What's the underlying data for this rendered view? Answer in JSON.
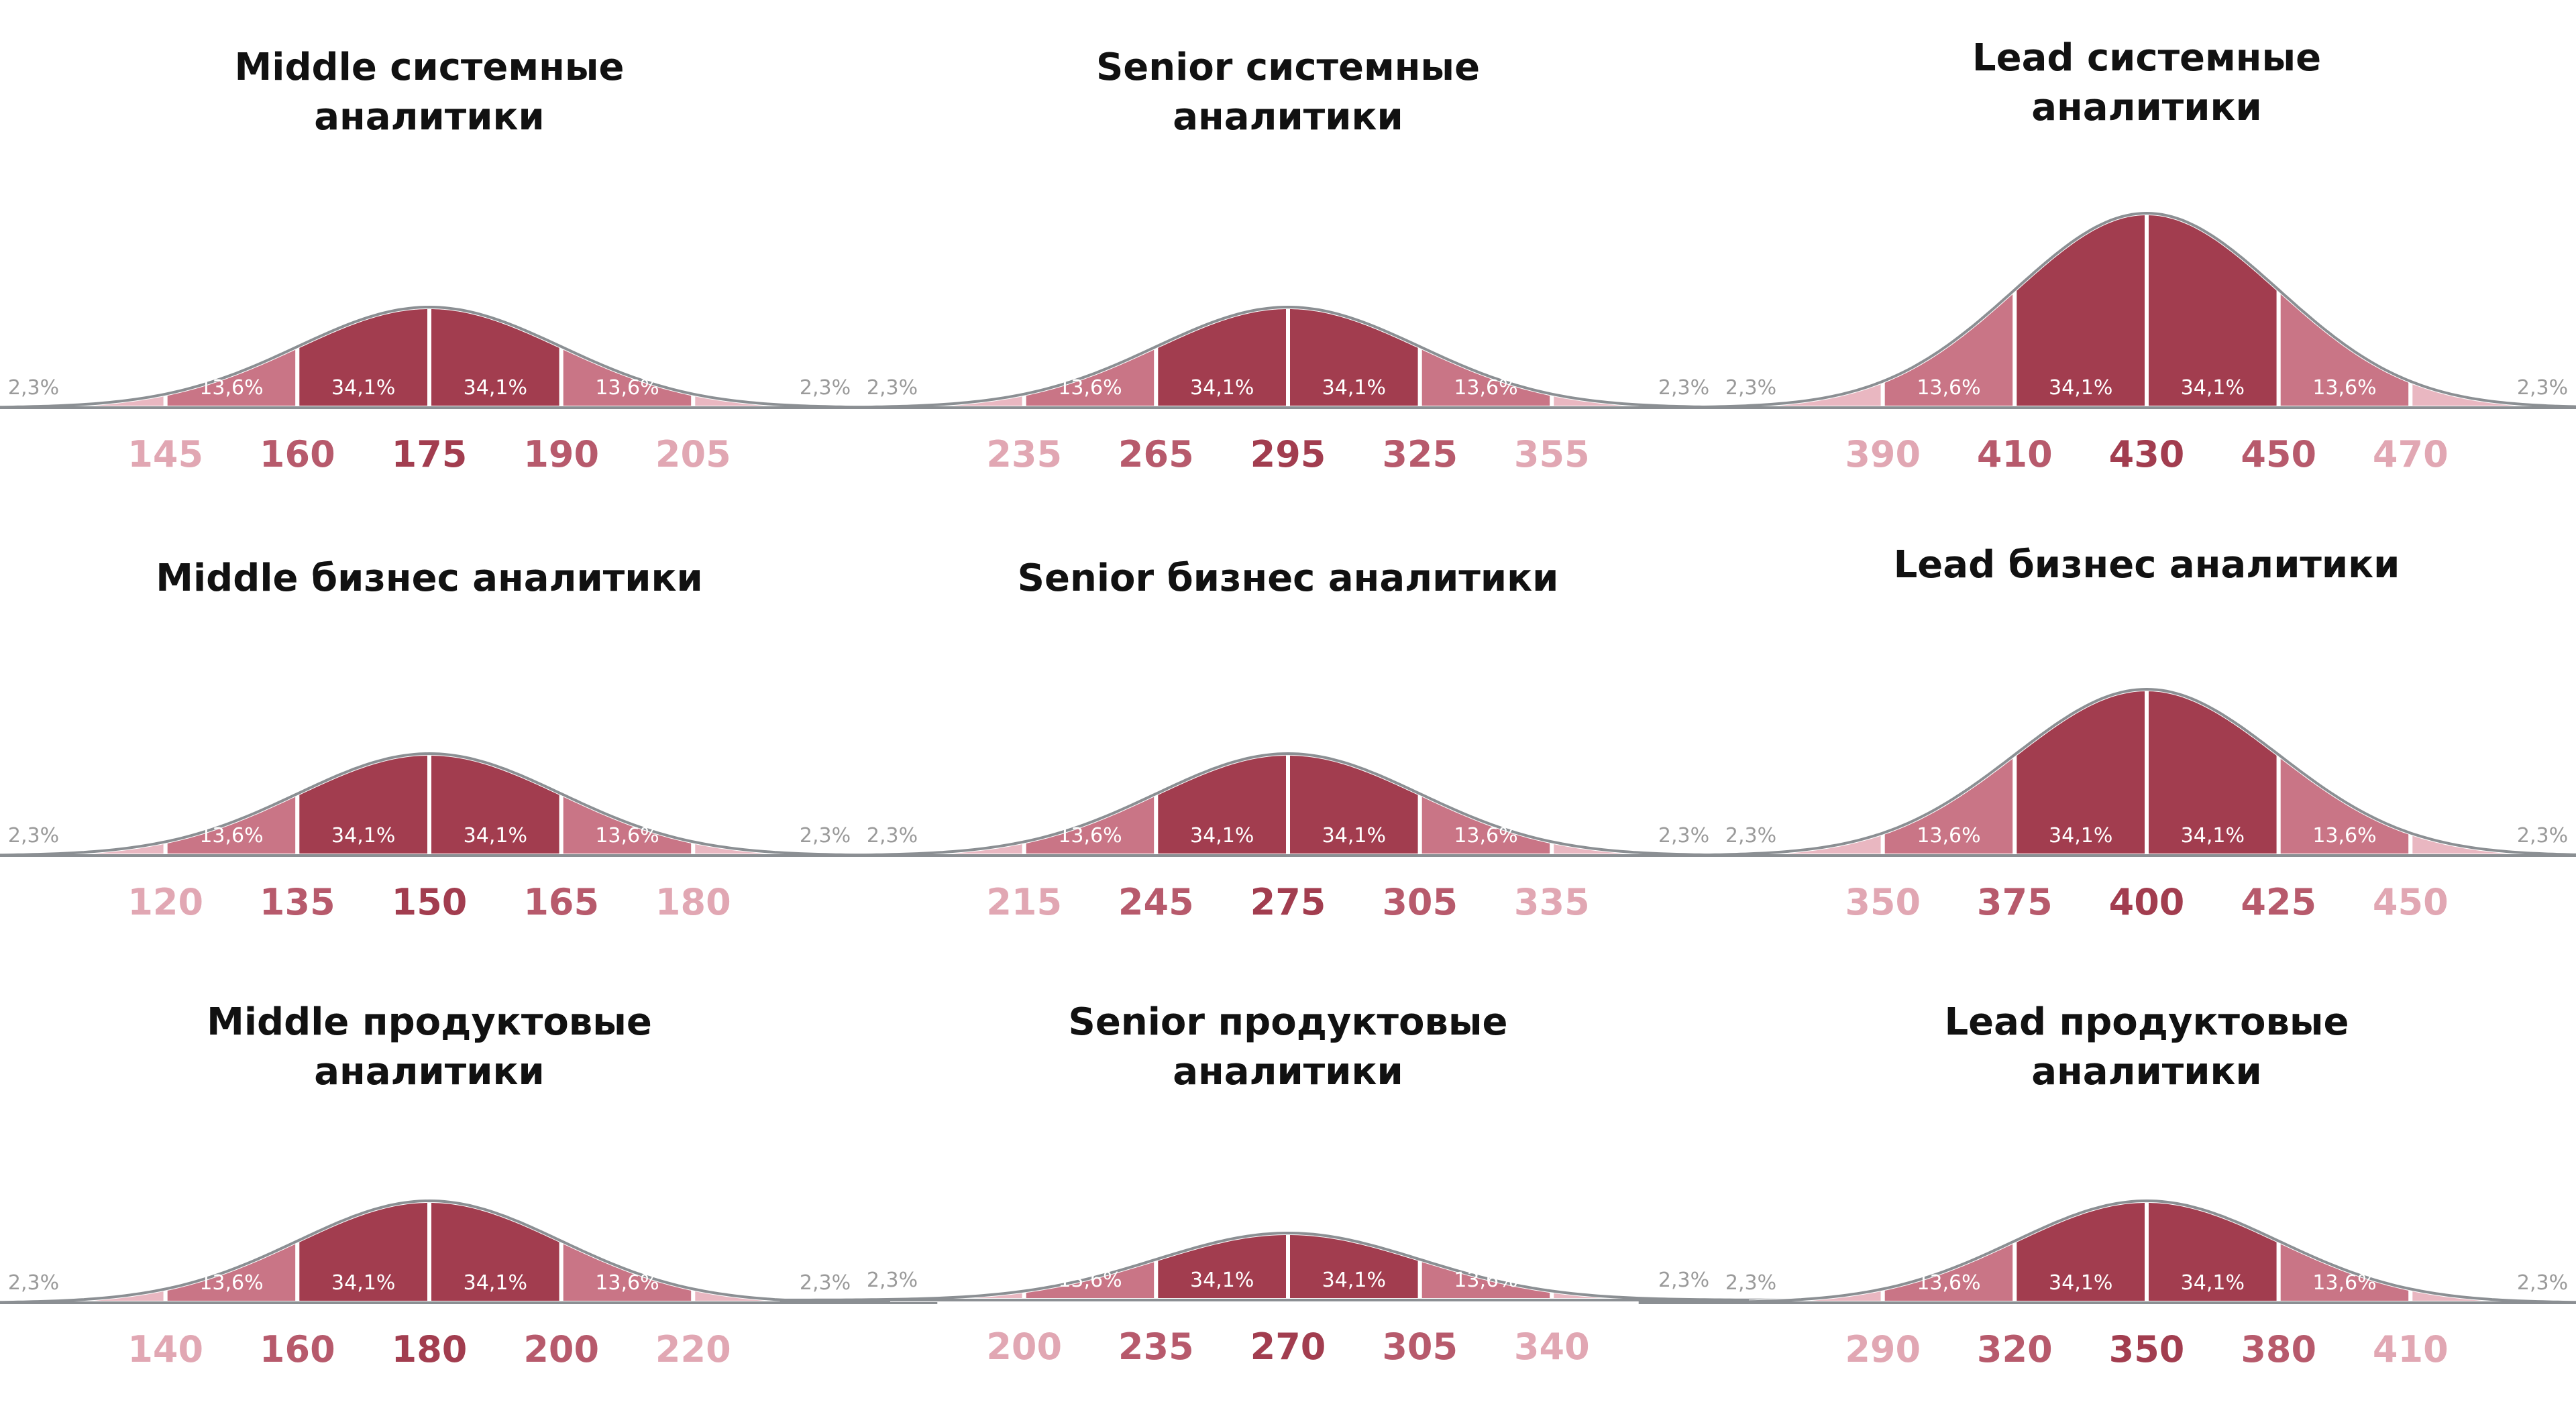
{
  "palette": {
    "dark": "#a23d4f",
    "mid": "#c97586",
    "light": "#e9b7c1",
    "outline": "#8b8f93",
    "tick_dark": "#a23d4f",
    "tick_mid": "#b75a6c",
    "tick_light": "#e1a7b3",
    "seg_text_inner": "#ffffff",
    "seg_text_outer": "#9a9a9a"
  },
  "chart_data": [
    {
      "type": "area",
      "title_lines": [
        "Middle системные",
        "аналитики"
      ],
      "segment_percents": [
        "2,3%",
        "13,6%",
        "34,1%",
        "34,1%",
        "13,6%",
        "2,3%"
      ],
      "ticks": [
        145,
        160,
        175,
        190,
        205
      ]
    },
    {
      "type": "area",
      "title_lines": [
        "Senior системные",
        "аналитики"
      ],
      "segment_percents": [
        "2,3%",
        "13,6%",
        "34,1%",
        "34,1%",
        "13,6%",
        "2,3%"
      ],
      "ticks": [
        235,
        265,
        295,
        325,
        355
      ]
    },
    {
      "type": "area",
      "title_lines": [
        "Lead системные",
        "аналитики"
      ],
      "segment_percents": [
        "2,3%",
        "13,6%",
        "34,1%",
        "34,1%",
        "13,6%",
        "2,3%"
      ],
      "ticks": [
        390,
        410,
        430,
        450,
        470
      ]
    },
    {
      "type": "area",
      "title_lines": [
        "Middle бизнес аналитики"
      ],
      "segment_percents": [
        "2,3%",
        "13,6%",
        "34,1%",
        "34,1%",
        "13,6%",
        "2,3%"
      ],
      "ticks": [
        120,
        135,
        150,
        165,
        180
      ]
    },
    {
      "type": "area",
      "title_lines": [
        "Senior бизнес аналитики"
      ],
      "segment_percents": [
        "2,3%",
        "13,6%",
        "34,1%",
        "34,1%",
        "13,6%",
        "2,3%"
      ],
      "ticks": [
        215,
        245,
        275,
        305,
        335
      ]
    },
    {
      "type": "area",
      "title_lines": [
        "Lead бизнес аналитики"
      ],
      "segment_percents": [
        "2,3%",
        "13,6%",
        "34,1%",
        "34,1%",
        "13,6%",
        "2,3%"
      ],
      "ticks": [
        350,
        375,
        400,
        425,
        450
      ]
    },
    {
      "type": "area",
      "title_lines": [
        "Middle продуктовые",
        "аналитики"
      ],
      "segment_percents": [
        "2,3%",
        "13,6%",
        "34,1%",
        "34,1%",
        "13,6%",
        "2,3%"
      ],
      "ticks": [
        140,
        160,
        180,
        200,
        220
      ]
    },
    {
      "type": "area",
      "title_lines": [
        "Senior продуктовые",
        "аналитики"
      ],
      "segment_percents": [
        "2,3%",
        "13,6%",
        "34,1%",
        "34,1%",
        "13,6%",
        "2,3%"
      ],
      "ticks": [
        200,
        235,
        270,
        305,
        340
      ]
    },
    {
      "type": "area",
      "title_lines": [
        "Lead продуктовые",
        "аналитики"
      ],
      "segment_percents": [
        "2,3%",
        "13,6%",
        "34,1%",
        "34,1%",
        "13,6%",
        "2,3%"
      ],
      "ticks": [
        290,
        320,
        350,
        380,
        410
      ]
    }
  ]
}
